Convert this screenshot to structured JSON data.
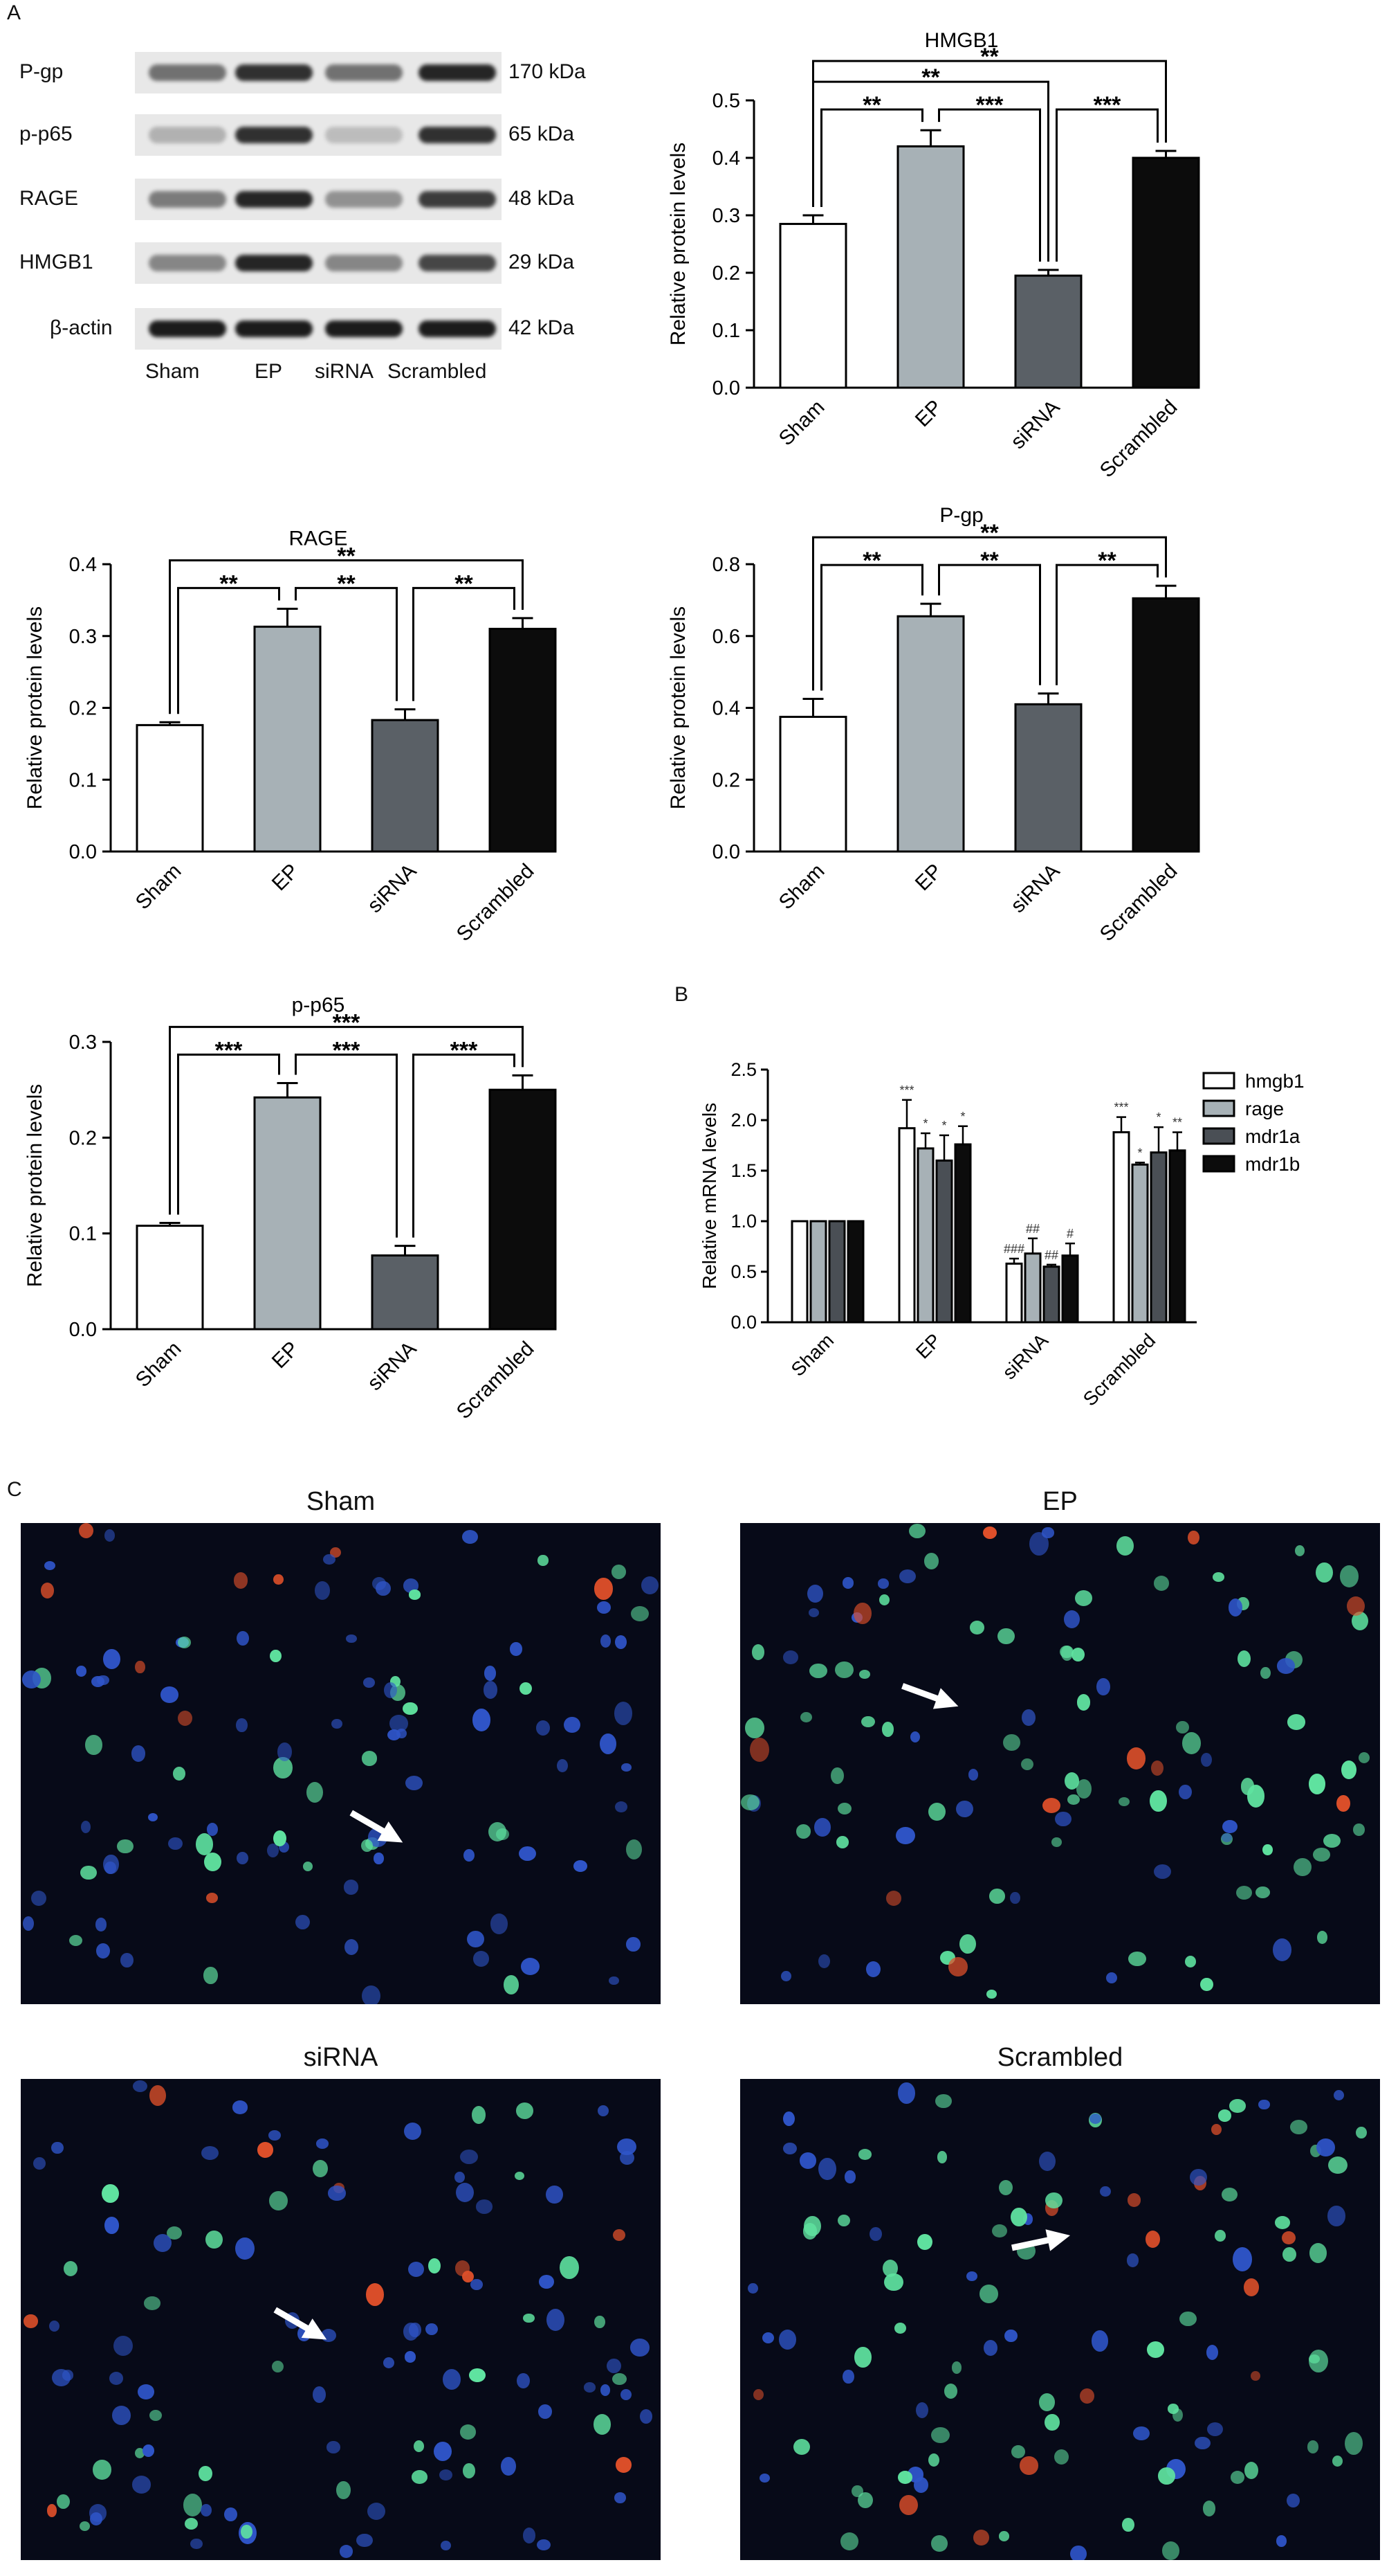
{
  "panels": {
    "a": "A",
    "b": "B",
    "c": "C"
  },
  "western_blot": {
    "rows": [
      {
        "label": "P-gp",
        "kda": "170 kDa",
        "intensity": [
          0.55,
          0.85,
          0.55,
          0.9
        ]
      },
      {
        "label": "p-p65",
        "kda": "65 kDa",
        "intensity": [
          0.25,
          0.85,
          0.2,
          0.85
        ]
      },
      {
        "label": "RAGE",
        "kda": "48 kDa",
        "intensity": [
          0.5,
          0.9,
          0.4,
          0.8
        ]
      },
      {
        "label": "HMGB1",
        "kda": "29 kDa",
        "intensity": [
          0.45,
          0.9,
          0.45,
          0.75
        ]
      },
      {
        "label": "β-actin",
        "kda": "42 kDa",
        "intensity": [
          0.95,
          0.95,
          0.95,
          0.95
        ]
      }
    ],
    "lanes": [
      "Sham",
      "EP",
      "siRNA",
      "Scrambled"
    ]
  },
  "chart_data": [
    {
      "type": "bar",
      "title": "HMGB1",
      "ylabel": "Relative protein levels",
      "categories": [
        "Sham",
        "EP",
        "siRNA",
        "Scrambled"
      ],
      "values": [
        0.285,
        0.42,
        0.195,
        0.4
      ],
      "errors": [
        0.015,
        0.028,
        0.01,
        0.012
      ],
      "ylim": [
        0,
        0.5
      ],
      "yticks": [
        "0.0",
        "0.1",
        "0.2",
        "0.3",
        "0.4",
        "0.5"
      ],
      "colors": [
        "#ffffff",
        "#a7b1b6",
        "#5a6066",
        "#0c0c0c"
      ],
      "brackets": [
        {
          "from": 0,
          "to": 1,
          "label": "**",
          "level": 1
        },
        {
          "from": 1,
          "to": 2,
          "label": "***",
          "level": 1
        },
        {
          "from": 2,
          "to": 3,
          "label": "***",
          "level": 1
        },
        {
          "from": 0,
          "to": 2,
          "label": "**",
          "level": 2
        },
        {
          "from": 0,
          "to": 3,
          "label": "**",
          "level": 3
        }
      ]
    },
    {
      "type": "bar",
      "title": "RAGE",
      "ylabel": "Relative protein levels",
      "categories": [
        "Sham",
        "EP",
        "siRNA",
        "Scrambled"
      ],
      "values": [
        0.176,
        0.313,
        0.183,
        0.31
      ],
      "errors": [
        0.004,
        0.025,
        0.015,
        0.015
      ],
      "ylim": [
        0,
        0.4
      ],
      "yticks": [
        "0.0",
        "0.1",
        "0.2",
        "0.3",
        "0.4"
      ],
      "colors": [
        "#ffffff",
        "#a7b1b6",
        "#5a6066",
        "#0c0c0c"
      ],
      "brackets": [
        {
          "from": 0,
          "to": 1,
          "label": "**",
          "level": 1
        },
        {
          "from": 1,
          "to": 2,
          "label": "**",
          "level": 1
        },
        {
          "from": 2,
          "to": 3,
          "label": "**",
          "level": 1
        },
        {
          "from": 0,
          "to": 3,
          "label": "**",
          "level": 2
        }
      ]
    },
    {
      "type": "bar",
      "title": "P-gp",
      "ylabel": "Relative protein levels",
      "categories": [
        "Sham",
        "EP",
        "siRNA",
        "Scrambled"
      ],
      "values": [
        0.375,
        0.655,
        0.41,
        0.705
      ],
      "errors": [
        0.05,
        0.035,
        0.03,
        0.035
      ],
      "ylim": [
        0,
        0.8
      ],
      "yticks": [
        "0.0",
        "0.2",
        "0.4",
        "0.6",
        "0.8"
      ],
      "colors": [
        "#ffffff",
        "#a7b1b6",
        "#5a6066",
        "#0c0c0c"
      ],
      "brackets": [
        {
          "from": 0,
          "to": 1,
          "label": "**",
          "level": 1
        },
        {
          "from": 1,
          "to": 2,
          "label": "**",
          "level": 1
        },
        {
          "from": 2,
          "to": 3,
          "label": "**",
          "level": 1
        },
        {
          "from": 0,
          "to": 3,
          "label": "**",
          "level": 2
        }
      ]
    },
    {
      "type": "bar",
      "title": "p-p65",
      "ylabel": "Relative protein levels",
      "categories": [
        "Sham",
        "EP",
        "siRNA",
        "Scrambled"
      ],
      "values": [
        0.108,
        0.242,
        0.077,
        0.25
      ],
      "errors": [
        0.003,
        0.015,
        0.01,
        0.015
      ],
      "ylim": [
        0,
        0.3
      ],
      "yticks": [
        "0.0",
        "0.1",
        "0.2",
        "0.3"
      ],
      "colors": [
        "#ffffff",
        "#a7b1b6",
        "#5a6066",
        "#0c0c0c"
      ],
      "brackets": [
        {
          "from": 0,
          "to": 1,
          "label": "***",
          "level": 1
        },
        {
          "from": 1,
          "to": 2,
          "label": "***",
          "level": 1
        },
        {
          "from": 2,
          "to": 3,
          "label": "***",
          "level": 1
        },
        {
          "from": 0,
          "to": 3,
          "label": "***",
          "level": 2
        }
      ]
    },
    {
      "type": "bar",
      "ylabel": "Relative mRNA levels",
      "categories": [
        "Sham",
        "EP",
        "siRNA",
        "Scrambled"
      ],
      "series": [
        {
          "name": "hmgb1",
          "color": "#ffffff",
          "values": [
            1.0,
            1.92,
            0.58,
            1.88
          ],
          "errors": [
            0,
            0.28,
            0.05,
            0.15
          ],
          "marks": [
            "",
            "***",
            "###",
            "***"
          ]
        },
        {
          "name": "rage",
          "color": "#a7b1b6",
          "values": [
            1.0,
            1.72,
            0.68,
            1.56
          ],
          "errors": [
            0,
            0.15,
            0.15,
            0.02
          ],
          "marks": [
            "",
            "*",
            "##",
            "*"
          ]
        },
        {
          "name": "mdr1a",
          "color": "#4a4f55",
          "values": [
            1.0,
            1.6,
            0.55,
            1.68
          ],
          "errors": [
            0,
            0.25,
            0.02,
            0.25
          ],
          "marks": [
            "",
            "*",
            "##",
            "*"
          ]
        },
        {
          "name": "mdr1b",
          "color": "#0c0c0c",
          "values": [
            1.0,
            1.76,
            0.66,
            1.7
          ],
          "errors": [
            0,
            0.18,
            0.12,
            0.18
          ],
          "marks": [
            "",
            "*",
            "#",
            "**"
          ]
        }
      ],
      "ylim": [
        0,
        2.5
      ],
      "yticks": [
        "0.0",
        "0.5",
        "1.0",
        "1.5",
        "2.0",
        "2.5"
      ],
      "legend_position": "right"
    }
  ],
  "micrographs": [
    {
      "title": "Sham",
      "green": 0.25
    },
    {
      "title": "EP",
      "green": 0.75
    },
    {
      "title": "siRNA",
      "green": 0.3
    },
    {
      "title": "Scrambled",
      "green": 0.6
    }
  ]
}
